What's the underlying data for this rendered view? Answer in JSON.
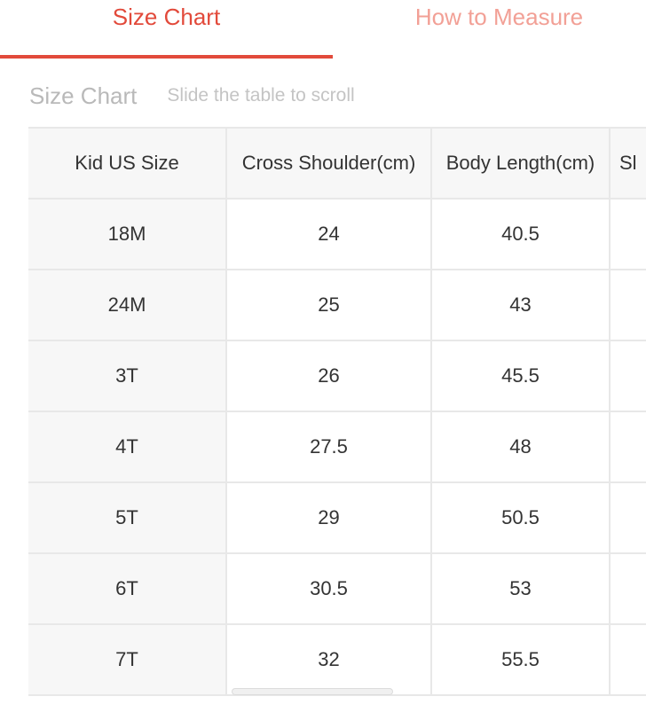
{
  "tabs": [
    {
      "label": "Size Chart",
      "active": true
    },
    {
      "label": "How to Measure",
      "active": false
    }
  ],
  "subheader": {
    "title": "Size Chart",
    "hint": "Slide the table to scroll"
  },
  "table": {
    "headers": [
      "Kid US Size",
      "Cross Shoulder(cm)",
      "Body Length(cm)",
      "Sl"
    ],
    "rows": [
      [
        "18M",
        "24",
        "40.5",
        ""
      ],
      [
        "24M",
        "25",
        "43",
        ""
      ],
      [
        "3T",
        "26",
        "45.5",
        ""
      ],
      [
        "4T",
        "27.5",
        "48",
        ""
      ],
      [
        "5T",
        "29",
        "50.5",
        ""
      ],
      [
        "6T",
        "30.5",
        "53",
        ""
      ],
      [
        "7T",
        "32",
        "55.5",
        ""
      ]
    ]
  },
  "colors": {
    "accent": "#e24a3b",
    "accent_light": "#f2a096",
    "header_bg": "#f7f7f7",
    "border": "#e8e8e8"
  }
}
